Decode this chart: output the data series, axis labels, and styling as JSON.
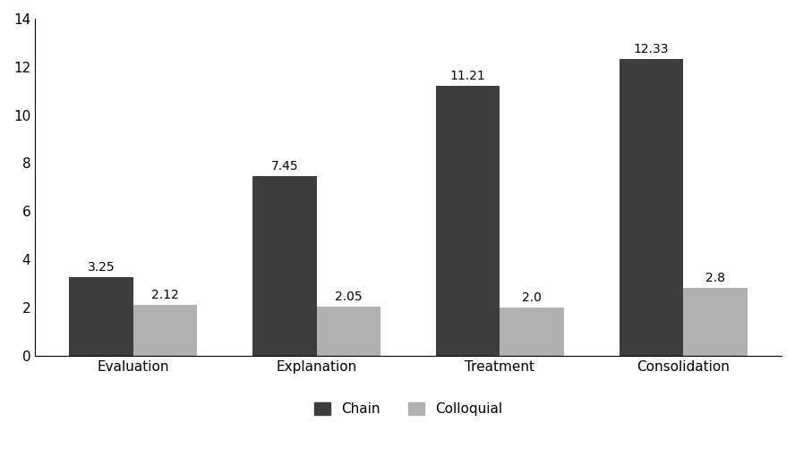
{
  "categories": [
    "Evaluation",
    "Explanation",
    "Treatment",
    "Consolidation"
  ],
  "chain_values": [
    3.25,
    7.45,
    11.21,
    12.33
  ],
  "colloquial_values": [
    2.12,
    2.05,
    2.0,
    2.8
  ],
  "chain_color": "#3d3d3d",
  "colloquial_color": "#b0b0b0",
  "ylim": [
    0,
    14
  ],
  "yticks": [
    0,
    2,
    4,
    6,
    8,
    10,
    12,
    14
  ],
  "legend_labels": [
    "Chain",
    "Colloquial"
  ],
  "bar_width": 0.35,
  "label_fontsize": 11,
  "tick_fontsize": 11,
  "annotation_fontsize": 10,
  "background_color": "#ffffff",
  "border_color": "#000000"
}
